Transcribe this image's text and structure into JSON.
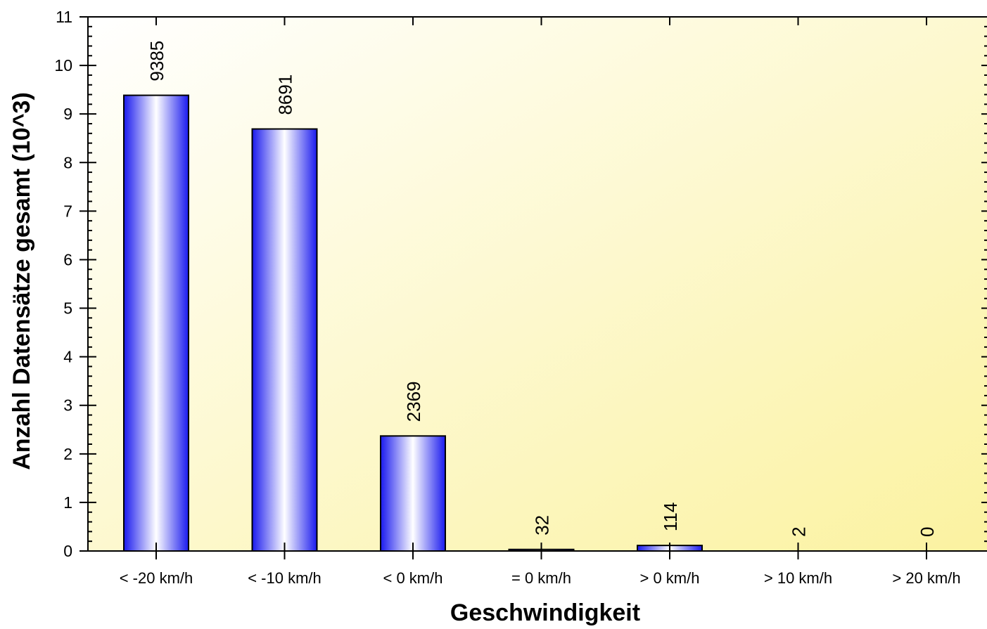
{
  "chart_data": {
    "type": "bar",
    "title": "",
    "xlabel": "Geschwindigkeit",
    "ylabel": "Anzahl Datensätze gesamt (10^3)",
    "categories": [
      "< -20 km/h",
      "< -10 km/h",
      "< 0 km/h",
      "= 0 km/h",
      "> 0 km/h",
      "> 10 km/h",
      "> 20 km/h"
    ],
    "values": [
      9385,
      8691,
      2369,
      32,
      114,
      2,
      0
    ],
    "data_labels": [
      "9385",
      "8691",
      "2369",
      "32",
      "114",
      "2",
      "0"
    ],
    "y_scale_divisor": 1000,
    "ylim": [
      0,
      11
    ],
    "y_ticks": [
      "0",
      "1",
      "2",
      "3",
      "4",
      "5",
      "6",
      "7",
      "8",
      "9",
      "10",
      "11"
    ],
    "grid": false,
    "legend": "none",
    "colors": {
      "bar_edge": "#1a1aee",
      "bar_center": "#ffffff",
      "bar_outline": "#000000",
      "bg_light": "#ffffff",
      "bg_yellow": "#fbf2a0",
      "axis": "#000000",
      "text": "#000000"
    }
  }
}
